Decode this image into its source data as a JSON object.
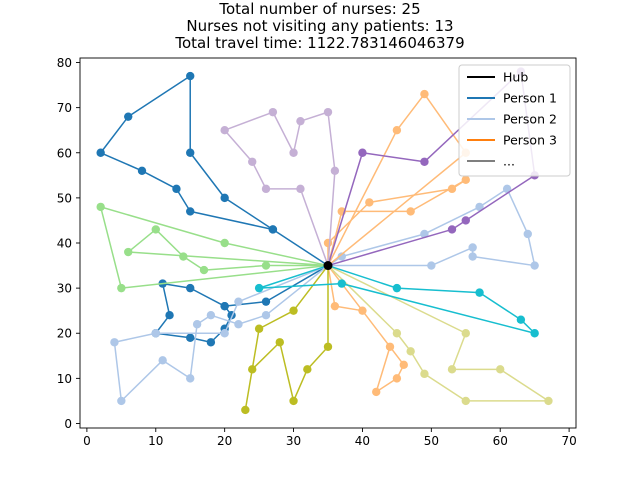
{
  "chart_data": {
    "type": "scatter",
    "title_lines": [
      "Total number of nurses: 25",
      "Nurses not visiting any patients: 13",
      "Total travel time: 1122.783146046379"
    ],
    "xlim": [
      -1,
      71
    ],
    "ylim": [
      -1,
      81
    ],
    "x_ticks": [
      0,
      10,
      20,
      30,
      40,
      50,
      60,
      70
    ],
    "y_ticks": [
      0,
      10,
      20,
      30,
      40,
      50,
      60,
      70,
      80
    ],
    "grid": false,
    "legend_position": "top-right",
    "legend": [
      {
        "label": "Hub",
        "color": "#000000"
      },
      {
        "label": "Person 1",
        "color": "#1f77b4"
      },
      {
        "label": "Person 2",
        "color": "#aec7e8"
      },
      {
        "label": "Person 3",
        "color": "#ff7f0e"
      },
      {
        "label": "...",
        "color": "#7f7f7f"
      }
    ],
    "hub": {
      "x": 35,
      "y": 35,
      "color": "#000000"
    },
    "routes": [
      {
        "color": "#1f77b4",
        "points": [
          [
            35,
            35
          ],
          [
            27,
            43
          ],
          [
            20,
            50
          ],
          [
            15,
            60
          ],
          [
            15,
            77
          ],
          [
            6,
            68
          ],
          [
            2,
            60
          ],
          [
            8,
            56
          ],
          [
            13,
            52
          ],
          [
            15,
            47
          ],
          [
            27,
            43
          ]
        ]
      },
      {
        "color": "#1f77b4",
        "points": [
          [
            35,
            35
          ],
          [
            26,
            27
          ],
          [
            20,
            26
          ],
          [
            21,
            24
          ],
          [
            20,
            21
          ],
          [
            18,
            18
          ],
          [
            15,
            19
          ],
          [
            10,
            20
          ],
          [
            12,
            24
          ],
          [
            11,
            31
          ],
          [
            15,
            30
          ],
          [
            20,
            26
          ]
        ]
      },
      {
        "color": "#aec7e8",
        "points": [
          [
            35,
            35
          ],
          [
            26,
            24
          ],
          [
            22,
            22
          ],
          [
            18,
            24
          ],
          [
            16,
            22
          ],
          [
            15,
            10
          ],
          [
            11,
            14
          ],
          [
            5,
            5
          ],
          [
            4,
            18
          ],
          [
            10,
            20
          ],
          [
            20,
            20
          ],
          [
            22,
            27
          ],
          [
            35,
            35
          ]
        ]
      },
      {
        "color": "#aec7e8",
        "points": [
          [
            35,
            35
          ],
          [
            37,
            37
          ],
          [
            49,
            42
          ],
          [
            57,
            48
          ],
          [
            61,
            52
          ],
          [
            64,
            42
          ],
          [
            65,
            35
          ],
          [
            56,
            37
          ],
          [
            56,
            39
          ],
          [
            50,
            35
          ],
          [
            35,
            35
          ]
        ]
      },
      {
        "color": "#ffbb78",
        "points": [
          [
            35,
            35
          ],
          [
            37,
            47
          ],
          [
            47,
            47
          ],
          [
            55,
            54
          ],
          [
            53,
            52
          ],
          [
            41,
            49
          ],
          [
            35,
            40
          ],
          [
            35,
            35
          ]
        ]
      },
      {
        "color": "#ffbb78",
        "points": [
          [
            35,
            35
          ],
          [
            45,
            65
          ],
          [
            49,
            73
          ],
          [
            55,
            60
          ],
          [
            35,
            35
          ]
        ]
      },
      {
        "color": "#ffbb78",
        "points": [
          [
            35,
            35
          ],
          [
            36,
            26
          ],
          [
            40,
            25
          ],
          [
            44,
            17
          ],
          [
            42,
            7
          ],
          [
            45,
            10
          ],
          [
            46,
            13
          ],
          [
            35,
            35
          ]
        ]
      },
      {
        "color": "#98df8a",
        "points": [
          [
            35,
            35
          ],
          [
            26,
            35
          ],
          [
            17,
            34
          ],
          [
            14,
            37
          ],
          [
            10,
            43
          ],
          [
            6,
            38
          ],
          [
            35,
            35
          ]
        ]
      },
      {
        "color": "#98df8a",
        "points": [
          [
            35,
            35
          ],
          [
            20,
            40
          ],
          [
            2,
            48
          ],
          [
            5,
            30
          ],
          [
            35,
            35
          ]
        ]
      },
      {
        "color": "#9467bd",
        "points": [
          [
            35,
            35
          ],
          [
            40,
            60
          ],
          [
            49,
            58
          ],
          [
            63,
            78
          ],
          [
            65,
            55
          ],
          [
            55,
            45
          ],
          [
            53,
            43
          ],
          [
            35,
            35
          ]
        ]
      },
      {
        "color": "#c5b0d5",
        "points": [
          [
            35,
            35
          ],
          [
            31,
            52
          ],
          [
            26,
            52
          ],
          [
            24,
            58
          ],
          [
            20,
            65
          ],
          [
            27,
            69
          ],
          [
            30,
            60
          ],
          [
            31,
            67
          ],
          [
            35,
            69
          ],
          [
            36,
            56
          ],
          [
            35,
            35
          ]
        ]
      },
      {
        "color": "#bcbd22",
        "points": [
          [
            35,
            35
          ],
          [
            35,
            17
          ],
          [
            32,
            12
          ],
          [
            30,
            5
          ],
          [
            28,
            18
          ],
          [
            24,
            12
          ],
          [
            23,
            3
          ],
          [
            25,
            21
          ],
          [
            30,
            25
          ],
          [
            35,
            35
          ]
        ]
      },
      {
        "color": "#dbdb8d",
        "points": [
          [
            35,
            35
          ],
          [
            45,
            20
          ],
          [
            47,
            16
          ],
          [
            49,
            11
          ],
          [
            55,
            5
          ],
          [
            67,
            5
          ],
          [
            60,
            12
          ],
          [
            53,
            12
          ],
          [
            55,
            20
          ],
          [
            35,
            35
          ]
        ]
      },
      {
        "color": "#17becf",
        "points": [
          [
            35,
            35
          ],
          [
            45,
            30
          ],
          [
            57,
            29
          ],
          [
            63,
            23
          ],
          [
            65,
            20
          ],
          [
            37,
            31
          ],
          [
            25,
            30
          ],
          [
            35,
            35
          ]
        ]
      }
    ]
  }
}
